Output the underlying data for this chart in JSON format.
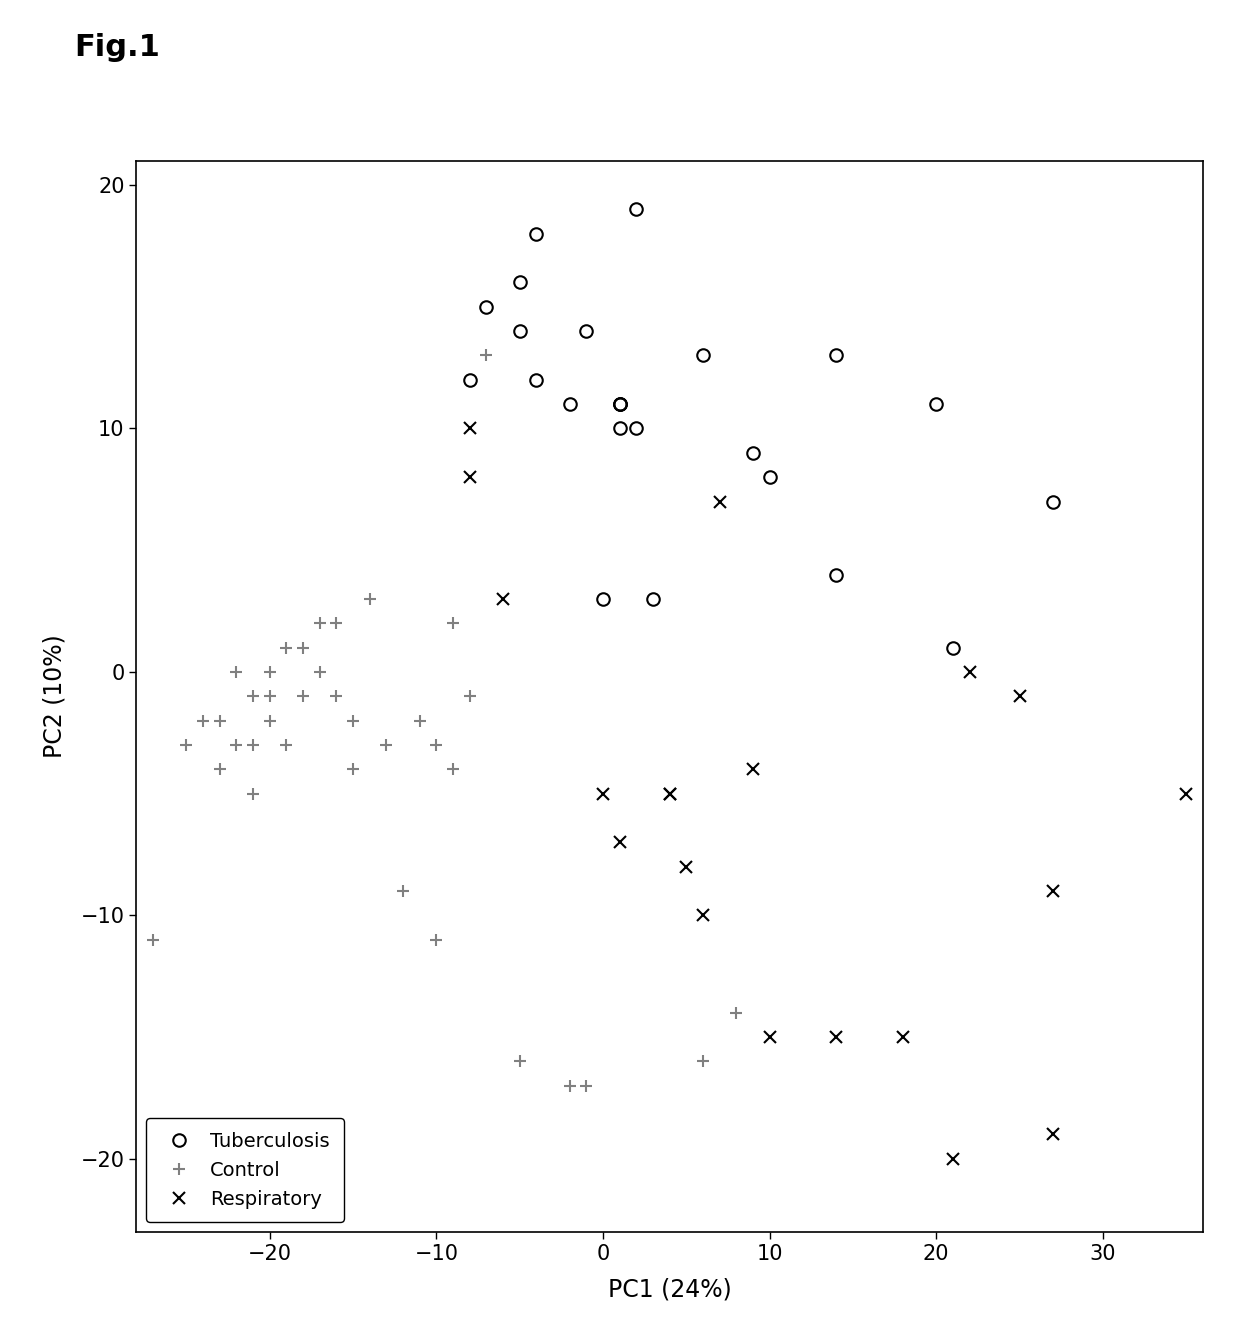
{
  "title": "Fig.1",
  "xlabel": "PC1 (24%)",
  "ylabel": "PC2 (10%)",
  "xlim": [
    -28,
    36
  ],
  "ylim": [
    -23,
    21
  ],
  "xticks": [
    -20,
    -10,
    0,
    10,
    20,
    30
  ],
  "yticks": [
    -20,
    -10,
    0,
    10,
    20
  ],
  "tuberculosis": {
    "x": [
      -8,
      -7,
      -5,
      -5,
      -4,
      -4,
      -2,
      -1,
      0,
      1,
      1,
      1,
      1,
      2,
      2,
      3,
      6,
      9,
      10,
      14,
      14,
      20,
      21,
      27
    ],
    "y": [
      12,
      15,
      16,
      14,
      18,
      12,
      11,
      14,
      3,
      11,
      11,
      11,
      10,
      10,
      19,
      3,
      13,
      9,
      8,
      13,
      4,
      11,
      1,
      7
    ],
    "marker": "o",
    "color": "black",
    "label": "Tuberculosis",
    "markersize": 9,
    "fillstyle": "none",
    "linewidth": 1.5
  },
  "control": {
    "x": [
      -27,
      -25,
      -24,
      -23,
      -23,
      -22,
      -22,
      -21,
      -21,
      -21,
      -20,
      -20,
      -20,
      -19,
      -19,
      -18,
      -18,
      -17,
      -17,
      -16,
      -16,
      -15,
      -15,
      -14,
      -13,
      -12,
      -11,
      -10,
      -10,
      -9,
      -9,
      -8,
      -7,
      -5,
      -2,
      -1,
      6,
      8
    ],
    "y": [
      -11,
      -3,
      -2,
      -2,
      -4,
      0,
      -3,
      -1,
      -3,
      -5,
      -2,
      0,
      -1,
      1,
      -3,
      1,
      -1,
      2,
      0,
      2,
      -1,
      -4,
      -2,
      3,
      -3,
      -9,
      -2,
      -11,
      -3,
      -4,
      2,
      -1,
      13,
      -16,
      -17,
      -17,
      -16,
      -14
    ],
    "marker": "+",
    "color": "gray",
    "label": "Control",
    "markersize": 9,
    "linewidth": 1.5
  },
  "respiratory": {
    "x": [
      -8,
      -8,
      -6,
      0,
      1,
      4,
      4,
      5,
      6,
      7,
      9,
      10,
      14,
      18,
      21,
      22,
      25,
      27,
      27,
      35
    ],
    "y": [
      10,
      8,
      3,
      -5,
      -7,
      -5,
      -5,
      -8,
      -10,
      7,
      -4,
      -15,
      -15,
      -15,
      -20,
      0,
      -1,
      -9,
      -19,
      -5
    ],
    "marker": "x",
    "color": "black",
    "label": "Respiratory",
    "markersize": 9,
    "linewidth": 1.5
  },
  "background_color": "white",
  "figsize": [
    12.4,
    13.39
  ]
}
